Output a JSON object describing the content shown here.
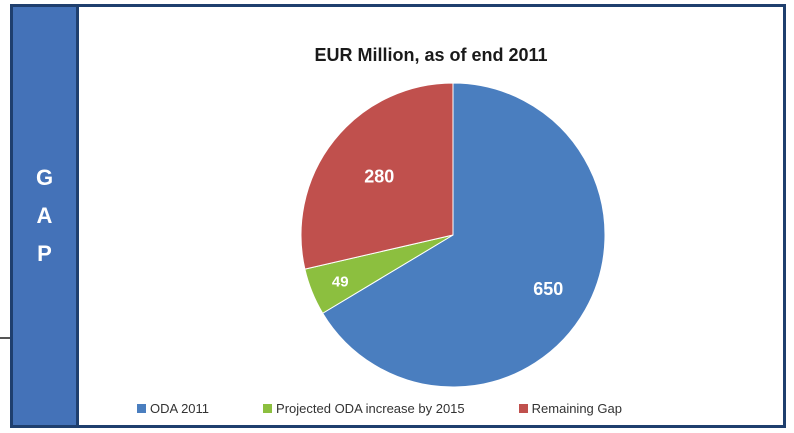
{
  "side_panel": {
    "letters": [
      "G",
      "A",
      "P"
    ],
    "color": "#4472b8"
  },
  "chart_data": {
    "type": "pie",
    "title": "EUR Million, as of end 2011",
    "slices": [
      {
        "label": "ODA 2011",
        "value": 650,
        "color": "#4a7ebf"
      },
      {
        "label": "Projected ODA increase by 2015",
        "value": 49,
        "color": "#8cbf3f"
      },
      {
        "label": "Remaining Gap",
        "value": 280,
        "color": "#c0504d"
      }
    ],
    "legend_position": "bottom"
  }
}
